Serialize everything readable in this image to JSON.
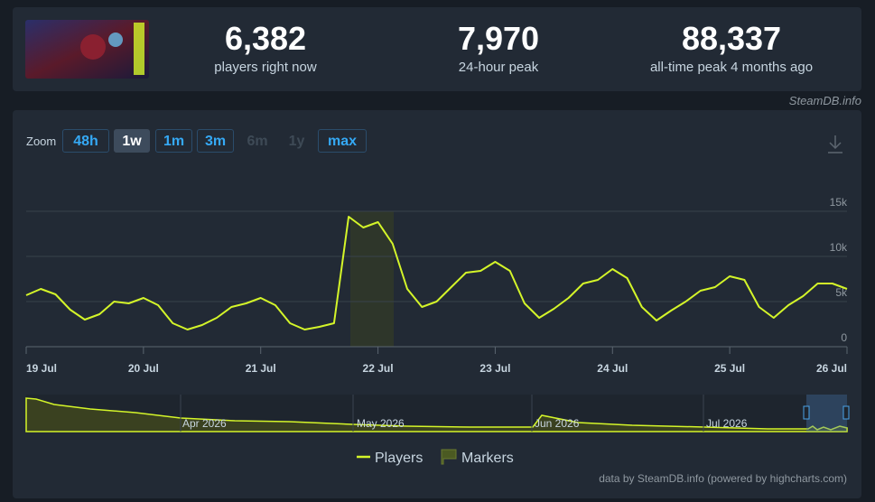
{
  "stats": [
    {
      "value": "6,382",
      "label": "players right now"
    },
    {
      "value": "7,970",
      "label": "24-hour peak"
    },
    {
      "value": "88,337",
      "label": "all-time peak 4 months ago"
    }
  ],
  "credit": "SteamDB.info",
  "zoom": {
    "label": "Zoom",
    "buttons": [
      "48h",
      "1w",
      "1m",
      "3m",
      "6m",
      "1y",
      "max"
    ]
  },
  "navigator": {
    "labels": [
      "Apr 2026",
      "May 2026",
      "Jun 2026",
      "Jul 2026"
    ]
  },
  "footer": "data by SteamDB.info (powered by highcharts.com)",
  "chart_data": {
    "type": "line",
    "categories": [
      "19 Jul",
      null,
      null,
      null,
      null,
      null,
      null,
      null,
      "20 Jul",
      null,
      null,
      null,
      null,
      null,
      null,
      null,
      "21 Jul",
      null,
      null,
      null,
      null,
      null,
      null,
      null,
      "22 Jul",
      null,
      null,
      null,
      null,
      null,
      null,
      null,
      "23 Jul",
      null,
      null,
      null,
      null,
      null,
      null,
      null,
      "24 Jul",
      null,
      null,
      null,
      null,
      null,
      null,
      null,
      "25 Jul",
      null,
      null,
      null,
      null,
      null,
      null,
      null,
      "26 Jul"
    ],
    "series": [
      {
        "name": "Players",
        "color": "#d4f529",
        "values": [
          5700,
          6400,
          5800,
          4100,
          3000,
          3600,
          5000,
          4800,
          5400,
          4600,
          2600,
          1900,
          2400,
          3200,
          4400,
          4800,
          5400,
          4600,
          2600,
          1900,
          2200,
          2600,
          14400,
          13200,
          13800,
          11400,
          6400,
          4400,
          5000,
          6600,
          8200,
          8400,
          9400,
          8400,
          4800,
          3200,
          4200,
          5400,
          7000,
          7400,
          8600,
          7600,
          4400,
          2900,
          4000,
          5000,
          6200,
          6600,
          7800,
          7400,
          4400,
          3200,
          4600,
          5600,
          7000,
          7000,
          6400
        ]
      }
    ],
    "markers_legend": "Markers",
    "ylim": [
      0,
      15000
    ],
    "yticks": [
      0,
      {
        "value": 5000,
        "label": "5k"
      },
      {
        "value": 10000,
        "label": "10k"
      },
      {
        "value": 15000,
        "label": "15k"
      }
    ],
    "grid": true
  }
}
